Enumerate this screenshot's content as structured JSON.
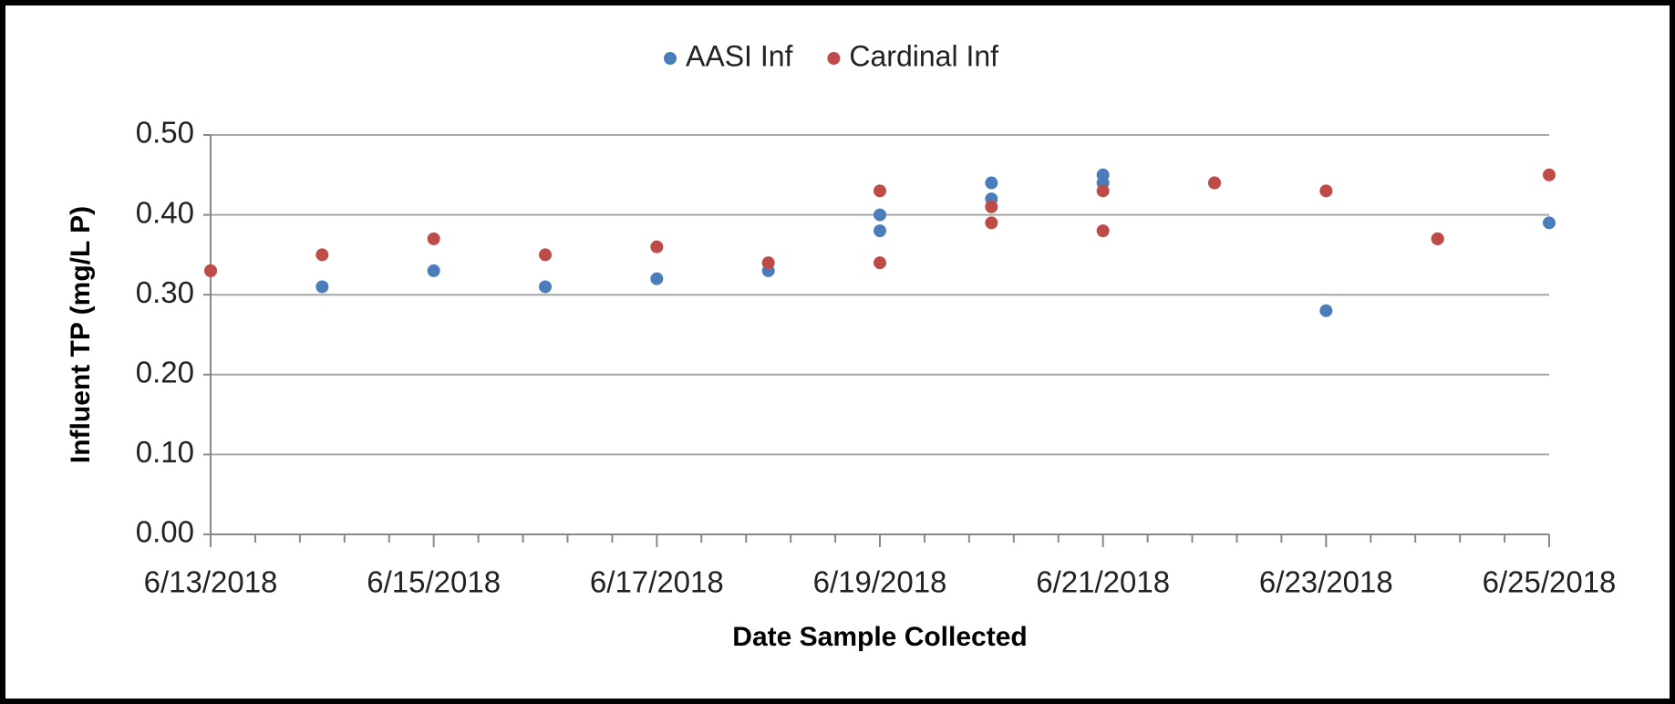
{
  "chart_data": {
    "type": "scatter",
    "x_label": "Date Sample Collected",
    "y_label": "Influent TP (mg/L P)",
    "xlim": [
      "6/13/2018",
      "6/25/2018"
    ],
    "xticks": [
      "6/13/2018",
      "6/15/2018",
      "6/17/2018",
      "6/19/2018",
      "6/21/2018",
      "6/23/2018",
      "6/25/2018"
    ],
    "ylim": [
      0,
      0.5
    ],
    "yticks": [
      {
        "value": 0,
        "label": "0.00"
      },
      {
        "value": 0.1,
        "label": "0.10"
      },
      {
        "value": 0.2,
        "label": "0.20"
      },
      {
        "value": 0.3,
        "label": "0.30"
      },
      {
        "value": 0.4,
        "label": "0.40"
      },
      {
        "value": 0.5,
        "label": "0.50"
      }
    ],
    "grid": true,
    "legend": "top",
    "series": [
      {
        "name": "AASI Inf",
        "color": "#4a7ebb",
        "x": [
          "6/13/2018",
          "6/14/2018",
          "6/15/2018",
          "6/16/2018",
          "6/17/2018",
          "6/18/2018",
          "6/19/2018",
          "6/19/2018",
          "6/20/2018",
          "6/20/2018",
          "6/21/2018",
          "6/21/2018",
          "6/22/2018",
          "6/23/2018",
          "6/24/2018",
          "6/25/2018"
        ],
        "values": [
          0.33,
          0.31,
          0.33,
          0.31,
          0.32,
          0.33,
          0.4,
          0.38,
          0.44,
          0.42,
          0.45,
          0.44,
          0.44,
          0.28,
          0.37,
          0.39
        ]
      },
      {
        "name": "Cardinal Inf",
        "color": "#be4b48",
        "x": [
          "6/13/2018",
          "6/14/2018",
          "6/15/2018",
          "6/16/2018",
          "6/17/2018",
          "6/18/2018",
          "6/19/2018",
          "6/19/2018",
          "6/20/2018",
          "6/20/2018",
          "6/21/2018",
          "6/21/2018",
          "6/22/2018",
          "6/23/2018",
          "6/24/2018",
          "6/25/2018"
        ],
        "values": [
          0.33,
          0.35,
          0.37,
          0.35,
          0.36,
          0.34,
          0.43,
          0.34,
          0.41,
          0.39,
          0.43,
          0.38,
          0.44,
          0.43,
          0.37,
          0.45
        ]
      }
    ]
  }
}
